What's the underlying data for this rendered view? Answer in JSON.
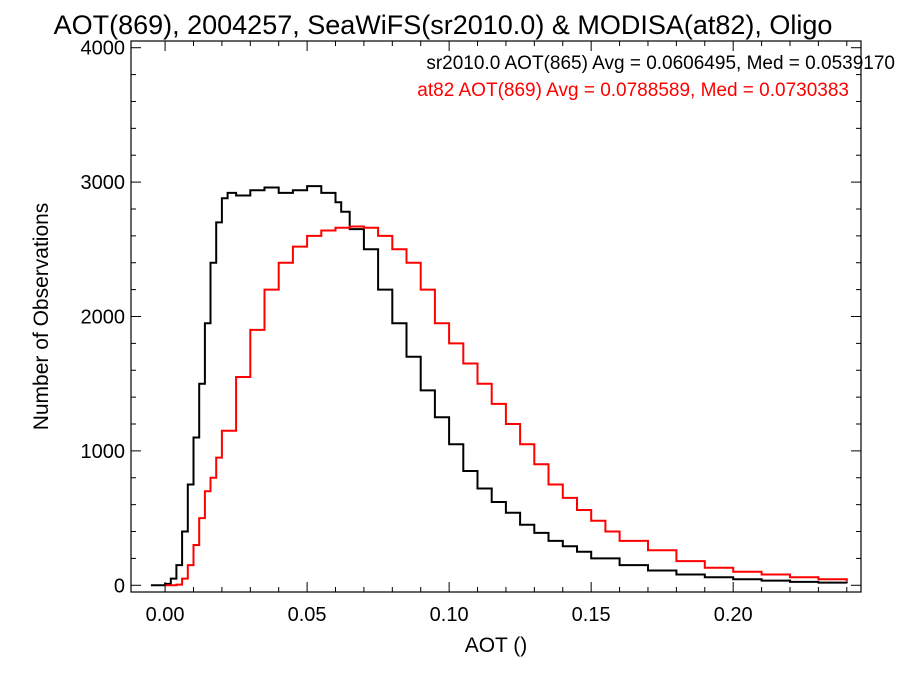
{
  "chart_data": {
    "type": "line",
    "step": true,
    "title": "AOT(869), 2004257, SeaWiFS(sr2010.0) & MODISA(at82), Oligo",
    "xlabel": "AOT ()",
    "ylabel": "Number of Observations",
    "xlim": [
      -0.012,
      0.245
    ],
    "ylim": [
      -50,
      4050
    ],
    "xticks": [
      0.0,
      0.05,
      0.1,
      0.15,
      0.2
    ],
    "xtick_labels": [
      "0.00",
      "0.05",
      "0.10",
      "0.15",
      "0.20"
    ],
    "yticks": [
      0,
      1000,
      2000,
      3000,
      4000
    ],
    "ytick_labels": [
      "0",
      "1000",
      "2000",
      "3000",
      "4000"
    ],
    "grid": false,
    "annotations": [
      {
        "text": "sr2010.0 AOT(865) Avg = 0.0606495, Med = 0.0539170",
        "color": "#000000"
      },
      {
        "text": "at82 AOT(869) Avg = 0.0788589, Med = 0.0730383",
        "color": "#ff0000"
      }
    ],
    "series": [
      {
        "color": "#000000",
        "x": [
          -0.005,
          0.0,
          0.002,
          0.004,
          0.006,
          0.008,
          0.01,
          0.012,
          0.014,
          0.016,
          0.018,
          0.02,
          0.022,
          0.025,
          0.03,
          0.035,
          0.04,
          0.045,
          0.05,
          0.055,
          0.06,
          0.062,
          0.065,
          0.07,
          0.075,
          0.08,
          0.085,
          0.09,
          0.095,
          0.1,
          0.105,
          0.11,
          0.115,
          0.12,
          0.125,
          0.13,
          0.135,
          0.14,
          0.145,
          0.15,
          0.16,
          0.17,
          0.18,
          0.19,
          0.2,
          0.21,
          0.22,
          0.23,
          0.24
        ],
        "y": [
          0,
          10,
          50,
          150,
          400,
          750,
          1100,
          1500,
          1950,
          2400,
          2700,
          2880,
          2920,
          2900,
          2940,
          2960,
          2920,
          2940,
          2970,
          2920,
          2850,
          2780,
          2650,
          2500,
          2200,
          1950,
          1700,
          1450,
          1250,
          1050,
          850,
          720,
          620,
          540,
          450,
          390,
          330,
          290,
          250,
          200,
          150,
          110,
          80,
          60,
          45,
          35,
          25,
          20,
          15
        ]
      },
      {
        "color": "#ff0000",
        "x": [
          0.0,
          0.004,
          0.006,
          0.008,
          0.01,
          0.012,
          0.014,
          0.016,
          0.018,
          0.02,
          0.025,
          0.03,
          0.035,
          0.04,
          0.045,
          0.05,
          0.055,
          0.06,
          0.065,
          0.07,
          0.075,
          0.08,
          0.085,
          0.09,
          0.095,
          0.1,
          0.105,
          0.11,
          0.115,
          0.12,
          0.125,
          0.13,
          0.135,
          0.14,
          0.145,
          0.15,
          0.155,
          0.16,
          0.17,
          0.18,
          0.19,
          0.2,
          0.21,
          0.22,
          0.23,
          0.24
        ],
        "y": [
          0,
          5,
          50,
          150,
          300,
          500,
          700,
          800,
          950,
          1150,
          1550,
          1900,
          2200,
          2400,
          2520,
          2600,
          2640,
          2660,
          2670,
          2660,
          2600,
          2500,
          2400,
          2200,
          1950,
          1800,
          1650,
          1500,
          1350,
          1200,
          1050,
          900,
          750,
          650,
          560,
          480,
          400,
          330,
          260,
          180,
          130,
          100,
          80,
          60,
          45,
          30
        ]
      }
    ]
  }
}
